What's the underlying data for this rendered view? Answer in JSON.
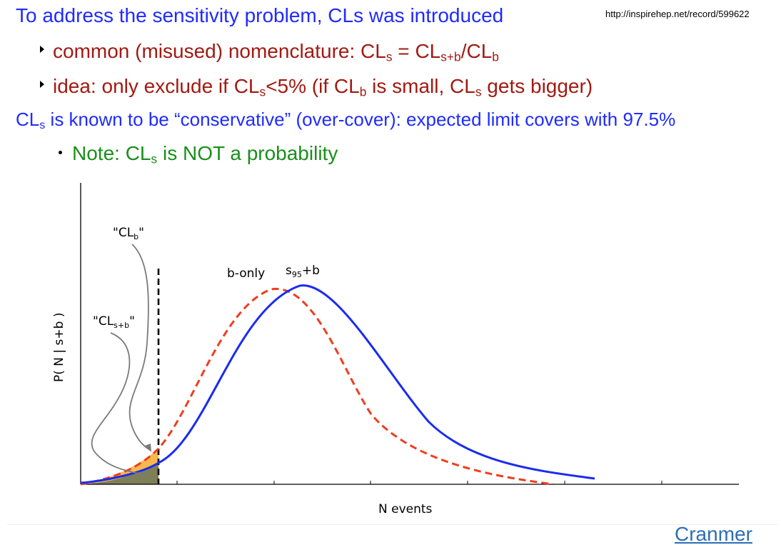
{
  "slide": {
    "title": "To address the sensitivity problem, CLs was introduced",
    "url": "http://inspirehep.net/record/599622",
    "bullet1": {
      "prefix": "common (misused) nomenclature: CL",
      "s": "s",
      "eq": " = CL",
      "spb": "s+b",
      "slash": "/CL",
      "b": "b"
    },
    "bullet2": {
      "p1": "idea: only exclude if CL",
      "s1": "s",
      "p2": "<5%  (if CL",
      "b": "b",
      "p3": " is small, CL",
      "s2": "s",
      "p4": " gets bigger)"
    },
    "line3": {
      "p1": "CL",
      "s": "s",
      "p2": " is known to be “conservative” (over-cover): expected limit covers with 97.5%"
    },
    "note": {
      "p1": "Note: CL",
      "s": "s",
      "p2": " is NOT a probability"
    },
    "footer_link": "Cranmer"
  },
  "figure": {
    "ylabel": "P( N | s+b )",
    "xlabel": "N events",
    "label_clb": "\"CL",
    "label_clb_sub": "b",
    "label_clb_end": "\"",
    "label_clspb": "\"CL",
    "label_clspb_sub": "s+b",
    "label_clspb_end": "\"",
    "label_bonly": "b-only",
    "label_s95b_s": "s",
    "label_s95b_sub": "95",
    "label_s95b_end": "+b",
    "colors": {
      "b_only": "#f03d1e",
      "s_plus_b": "#1a2bf0",
      "clb_fill": "#f7b94d",
      "clspb_fill": "#7f7f57"
    }
  }
}
